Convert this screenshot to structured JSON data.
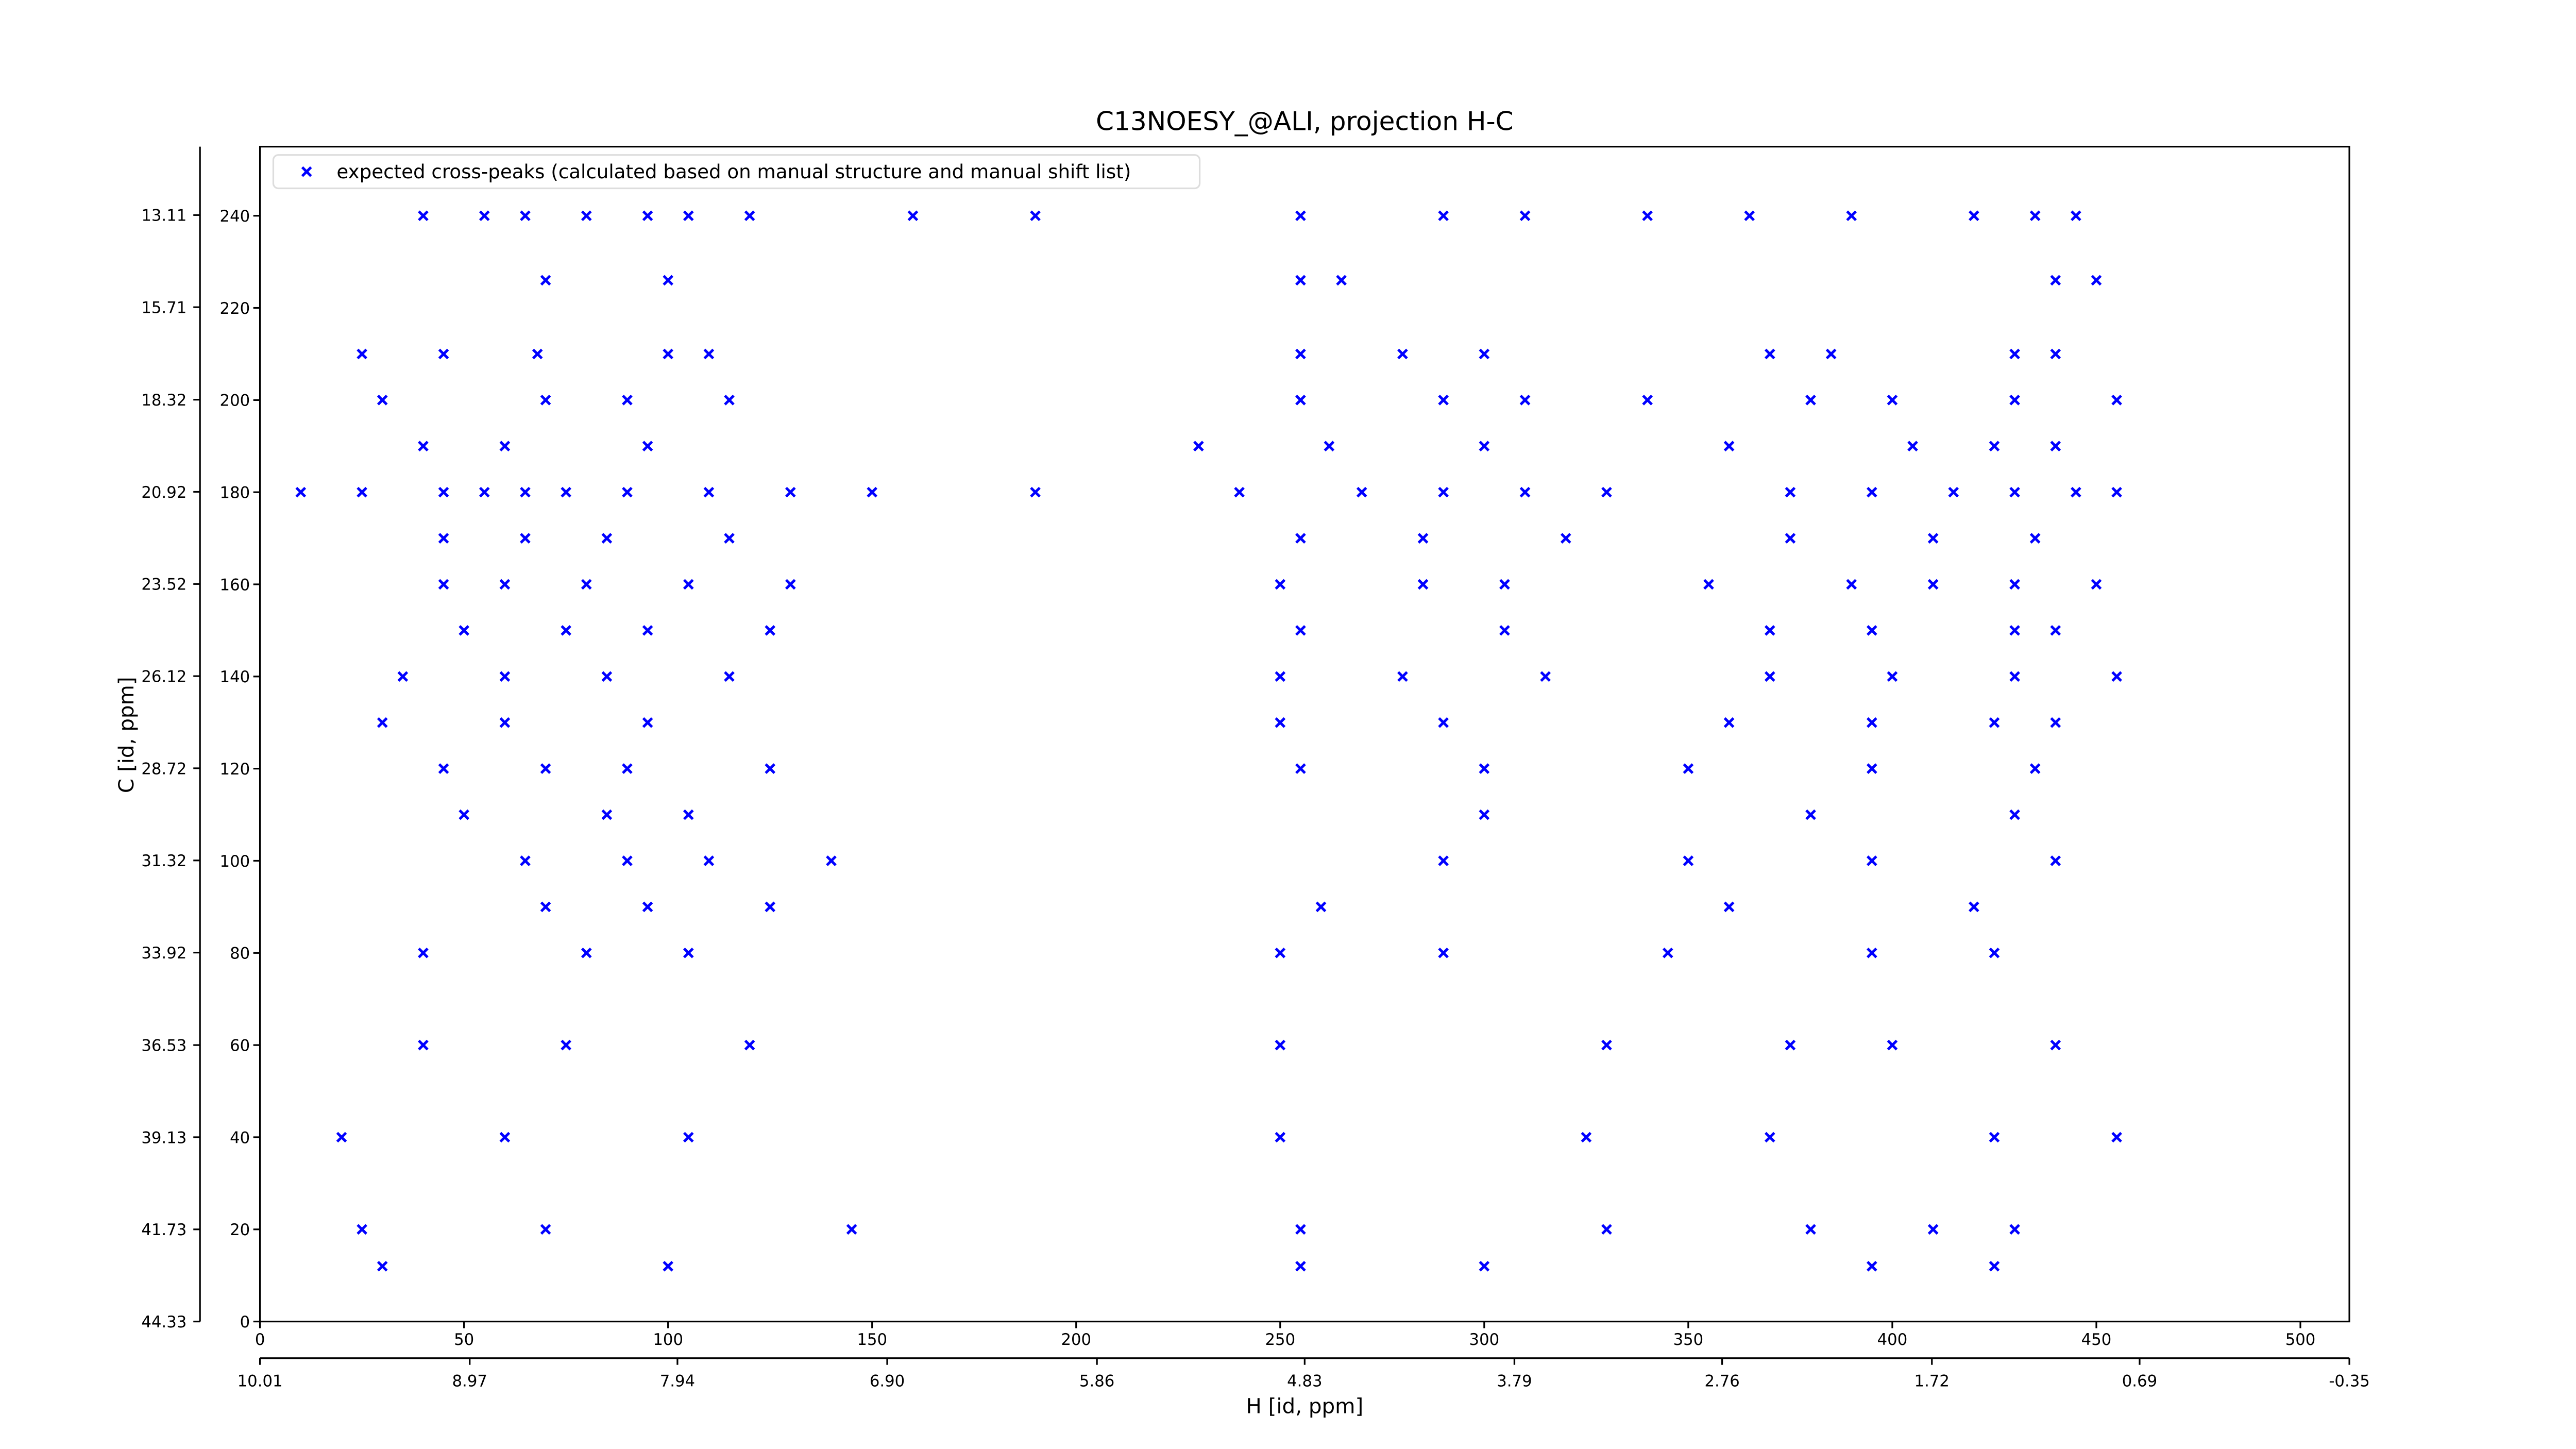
{
  "chart_data": {
    "type": "scatter",
    "title": "C13NOESY_@ALI, projection H-C",
    "x2label": "H [id, ppm]",
    "y2label": "C [id, ppm]",
    "xlim": [
      0,
      512
    ],
    "xticks": [
      0,
      50,
      100,
      150,
      200,
      250,
      300,
      350,
      400,
      450,
      500
    ],
    "ylim": [
      0,
      255
    ],
    "yticks": [
      0,
      20,
      40,
      60,
      80,
      100,
      120,
      140,
      160,
      180,
      200,
      220,
      240
    ],
    "x2lim": [
      10.01,
      -0.35
    ],
    "x2ticks": [
      10.01,
      8.97,
      7.94,
      {
        "value": 6.9,
        "label": "6.90"
      },
      5.86,
      4.83,
      3.79,
      2.76,
      1.72,
      0.69,
      -0.35
    ],
    "y2lim": [
      44.33,
      11.18
    ],
    "y2ticks": [
      44.33,
      41.73,
      39.13,
      36.53,
      33.92,
      31.32,
      28.72,
      26.12,
      23.52,
      20.92,
      18.32,
      15.71,
      13.11
    ],
    "legend": "upper left",
    "series": [
      {
        "name": "expected cross-peaks (calculated based on manual structure and manual shift list)",
        "color": "#0000ff",
        "x": [
          40,
          55,
          65,
          80,
          95,
          105,
          120,
          160,
          190,
          255,
          290,
          310,
          340,
          365,
          390,
          420,
          435,
          445,
          70,
          100,
          255,
          265,
          440,
          450,
          25,
          45,
          68,
          100,
          110,
          255,
          280,
          300,
          370,
          385,
          430,
          440,
          30,
          70,
          90,
          115,
          255,
          290,
          310,
          340,
          380,
          400,
          430,
          455,
          40,
          60,
          95,
          230,
          262,
          300,
          360,
          405,
          425,
          440,
          10,
          25,
          45,
          55,
          65,
          75,
          90,
          110,
          130,
          150,
          190,
          240,
          270,
          290,
          310,
          330,
          375,
          395,
          415,
          430,
          445,
          455,
          45,
          65,
          85,
          115,
          255,
          285,
          320,
          375,
          410,
          435,
          45,
          60,
          80,
          105,
          130,
          250,
          285,
          305,
          355,
          390,
          410,
          430,
          450,
          50,
          75,
          95,
          125,
          255,
          305,
          370,
          395,
          430,
          440,
          35,
          60,
          85,
          115,
          250,
          280,
          315,
          370,
          400,
          430,
          455,
          30,
          60,
          95,
          250,
          290,
          360,
          395,
          425,
          440,
          45,
          70,
          90,
          125,
          255,
          300,
          350,
          395,
          435,
          50,
          85,
          105,
          300,
          380,
          430,
          65,
          90,
          110,
          140,
          290,
          350,
          395,
          440,
          70,
          95,
          125,
          260,
          360,
          420,
          40,
          80,
          105,
          250,
          290,
          345,
          395,
          425,
          40,
          75,
          120,
          250,
          330,
          375,
          400,
          440,
          20,
          60,
          105,
          250,
          325,
          370,
          425,
          455,
          25,
          70,
          145,
          255,
          330,
          380,
          410,
          430,
          30,
          100,
          255,
          300,
          395,
          425
        ],
        "values": [
          240,
          240,
          240,
          240,
          240,
          240,
          240,
          240,
          240,
          240,
          240,
          240,
          240,
          240,
          240,
          240,
          240,
          240,
          226,
          226,
          226,
          226,
          226,
          226,
          210,
          210,
          210,
          210,
          210,
          210,
          210,
          210,
          210,
          210,
          210,
          210,
          200,
          200,
          200,
          200,
          200,
          200,
          200,
          200,
          200,
          200,
          200,
          200,
          190,
          190,
          190,
          190,
          190,
          190,
          190,
          190,
          190,
          190,
          180,
          180,
          180,
          180,
          180,
          180,
          180,
          180,
          180,
          180,
          180,
          180,
          180,
          180,
          180,
          180,
          180,
          180,
          180,
          180,
          180,
          180,
          170,
          170,
          170,
          170,
          170,
          170,
          170,
          170,
          170,
          170,
          160,
          160,
          160,
          160,
          160,
          160,
          160,
          160,
          160,
          160,
          160,
          160,
          160,
          150,
          150,
          150,
          150,
          150,
          150,
          150,
          150,
          150,
          150,
          140,
          140,
          140,
          140,
          140,
          140,
          140,
          140,
          140,
          140,
          140,
          130,
          130,
          130,
          130,
          130,
          130,
          130,
          130,
          130,
          120,
          120,
          120,
          120,
          120,
          120,
          120,
          120,
          120,
          110,
          110,
          110,
          110,
          110,
          110,
          100,
          100,
          100,
          100,
          100,
          100,
          100,
          100,
          90,
          90,
          90,
          90,
          90,
          90,
          80,
          80,
          80,
          80,
          80,
          80,
          80,
          80,
          60,
          60,
          60,
          60,
          60,
          60,
          60,
          60,
          40,
          40,
          40,
          40,
          40,
          40,
          40,
          40,
          20,
          20,
          20,
          20,
          20,
          20,
          20,
          20,
          12,
          12,
          12,
          12,
          12,
          12
        ]
      }
    ]
  }
}
